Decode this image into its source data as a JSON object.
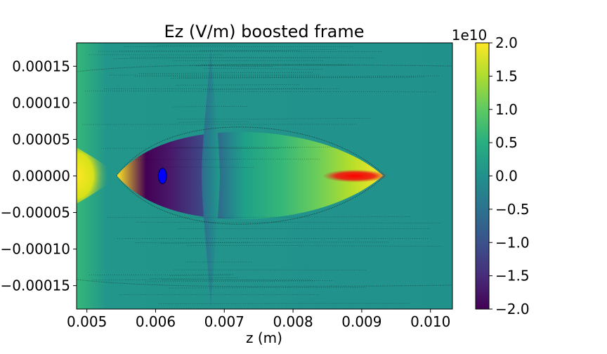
{
  "chart_data": {
    "type": "heatmap",
    "title": "Ez (V/m) boosted frame",
    "xlabel": "z (m)",
    "ylabel": "",
    "xlim": [
      0.00485,
      0.01032
    ],
    "ylim": [
      -0.000182,
      0.000182
    ],
    "xticks": [
      0.005,
      0.006,
      0.007,
      0.008,
      0.009,
      0.01
    ],
    "xtick_labels": [
      "0.005",
      "0.006",
      "0.007",
      "0.008",
      "0.009",
      "0.010"
    ],
    "yticks": [
      0.00015,
      0.0001,
      5e-05,
      0.0,
      -5e-05,
      -0.0001,
      -0.00015
    ],
    "ytick_labels": [
      "0.00015",
      "0.00010",
      "0.00005",
      "0.00000",
      "−0.00005",
      "−0.00010",
      "−0.00015"
    ],
    "colorbar": {
      "colormap": "viridis",
      "range": [
        -2.0,
        2.0
      ],
      "scale_label": "1e10",
      "ticks": [
        2.0,
        1.5,
        1.0,
        0.5,
        0.0,
        -0.5,
        -1.0,
        -1.5,
        -2.0
      ],
      "tick_labels": [
        "2.0",
        "1.5",
        "1.0",
        "0.5",
        "0.0",
        "−0.5",
        "−1.0",
        "−1.5",
        "−2.0"
      ]
    },
    "overlays": {
      "plasma_particles_color": "#000000",
      "beam_particles_color": "#ff0000",
      "beam_center": [
        0.0089,
        0.0
      ],
      "witness_bunch_color": "#0000ff",
      "witness_bunch_center": [
        0.0061,
        0.0
      ]
    },
    "grid": false
  }
}
